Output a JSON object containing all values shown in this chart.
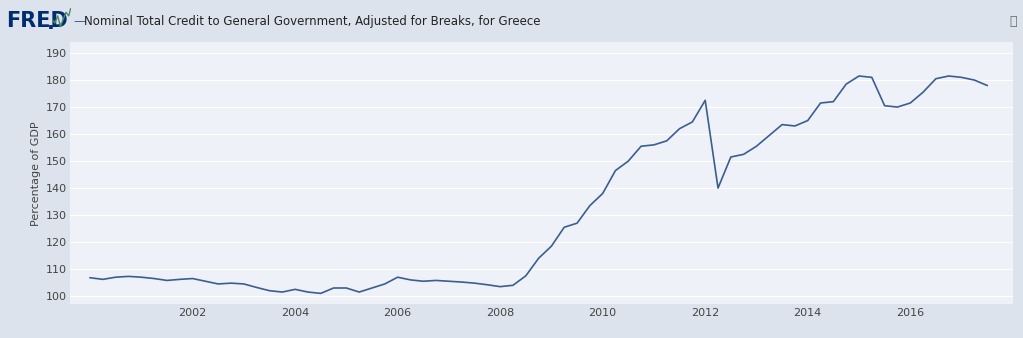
{
  "title": "Nominal Total Credit to General Government, Adjusted for Breaks, for Greece",
  "ylabel": "Percentage of GDP",
  "line_color": "#3a5f8f",
  "background_color": "#dce3ed",
  "plot_background": "#eef1f7",
  "grid_color": "#ffffff",
  "yticks": [
    100,
    110,
    120,
    130,
    140,
    150,
    160,
    170,
    180,
    190
  ],
  "xtick_labels": [
    "2002",
    "2004",
    "2006",
    "2008",
    "2010",
    "2012",
    "2014",
    "2016"
  ],
  "x_data": [
    2000.0,
    2000.25,
    2000.5,
    2000.75,
    2001.0,
    2001.25,
    2001.5,
    2001.75,
    2002.0,
    2002.25,
    2002.5,
    2002.75,
    2003.0,
    2003.25,
    2003.5,
    2003.75,
    2004.0,
    2004.25,
    2004.5,
    2004.75,
    2005.0,
    2005.25,
    2005.5,
    2005.75,
    2006.0,
    2006.25,
    2006.5,
    2006.75,
    2007.0,
    2007.25,
    2007.5,
    2007.75,
    2008.0,
    2008.25,
    2008.5,
    2008.75,
    2009.0,
    2009.25,
    2009.5,
    2009.75,
    2010.0,
    2010.25,
    2010.5,
    2010.75,
    2011.0,
    2011.25,
    2011.5,
    2011.75,
    2012.0,
    2012.25,
    2012.5,
    2012.75,
    2013.0,
    2013.25,
    2013.5,
    2013.75,
    2014.0,
    2014.25,
    2014.5,
    2014.75,
    2015.0,
    2015.25,
    2015.5,
    2015.75,
    2016.0,
    2016.25,
    2016.5,
    2016.75,
    2017.0,
    2017.25,
    2017.5
  ],
  "y_data": [
    106.8,
    106.2,
    107.0,
    107.3,
    107.0,
    106.5,
    105.8,
    106.2,
    106.5,
    105.5,
    104.5,
    104.8,
    104.5,
    103.2,
    102.0,
    101.5,
    102.5,
    101.5,
    101.0,
    103.0,
    103.0,
    101.5,
    103.0,
    104.5,
    107.0,
    106.0,
    105.5,
    105.8,
    105.5,
    105.2,
    104.8,
    104.2,
    103.5,
    104.0,
    107.5,
    114.0,
    118.5,
    125.5,
    127.0,
    133.5,
    138.0,
    146.5,
    150.0,
    155.5,
    156.0,
    157.5,
    162.0,
    164.5,
    172.5,
    140.0,
    151.5,
    152.5,
    155.5,
    159.5,
    163.5,
    163.0,
    165.0,
    171.5,
    172.0,
    178.5,
    181.5,
    181.0,
    170.5,
    170.0,
    171.5,
    175.5,
    180.5,
    181.5,
    181.0,
    180.0,
    178.0
  ]
}
